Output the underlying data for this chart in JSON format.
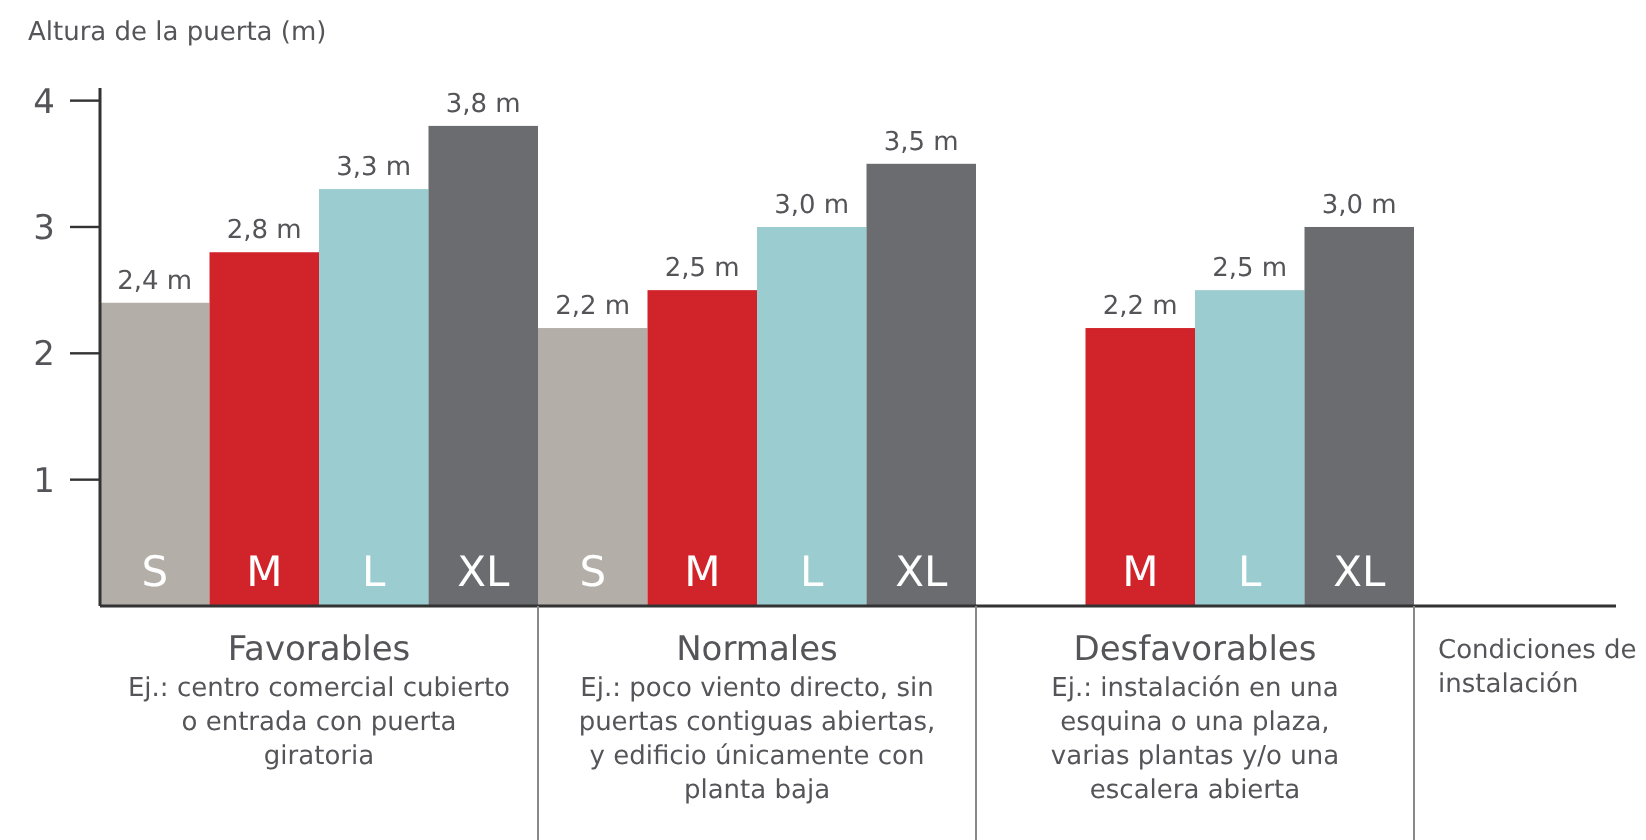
{
  "chart_data": {
    "type": "bar",
    "ylabel": "Altura de la puerta (m)",
    "xlabel": "Condiciones de\ninstalación",
    "categories": [
      "Favorables",
      "Normales",
      "Desfavorables"
    ],
    "series": [
      {
        "name": "S",
        "color": "#b3aea8",
        "values": [
          2.4,
          2.2,
          null
        ],
        "value_labels": [
          "2,4 m",
          "2,2 m",
          null
        ]
      },
      {
        "name": "M",
        "color": "#d1232a",
        "values": [
          2.8,
          2.5,
          2.2
        ],
        "value_labels": [
          "2,8 m",
          "2,5 m",
          "2,2 m"
        ]
      },
      {
        "name": "L",
        "color": "#9bcccf",
        "values": [
          3.3,
          3.0,
          2.5
        ],
        "value_labels": [
          "3,3 m",
          "3,0 m",
          "2,5 m"
        ]
      },
      {
        "name": "XL",
        "color": "#6b6c70",
        "values": [
          3.8,
          3.5,
          3.0
        ],
        "value_labels": [
          "3,8 m",
          "3,5 m",
          "3,0 m"
        ]
      }
    ],
    "ylim": [
      0,
      4.1
    ],
    "yticks": [
      1,
      2,
      3,
      4
    ],
    "annotations": [
      "Ej.: centro comercial cubierto\no entrada con puerta\ngiratoria",
      "Ej.: poco viento directo, sin\npuertas contiguas abiertas,\ny edificio únicamente con\nplanta baja",
      "Ej.: instalación en una\nesquina o una plaza,\nvarias plantas y/o una\nescalera abierta"
    ]
  }
}
